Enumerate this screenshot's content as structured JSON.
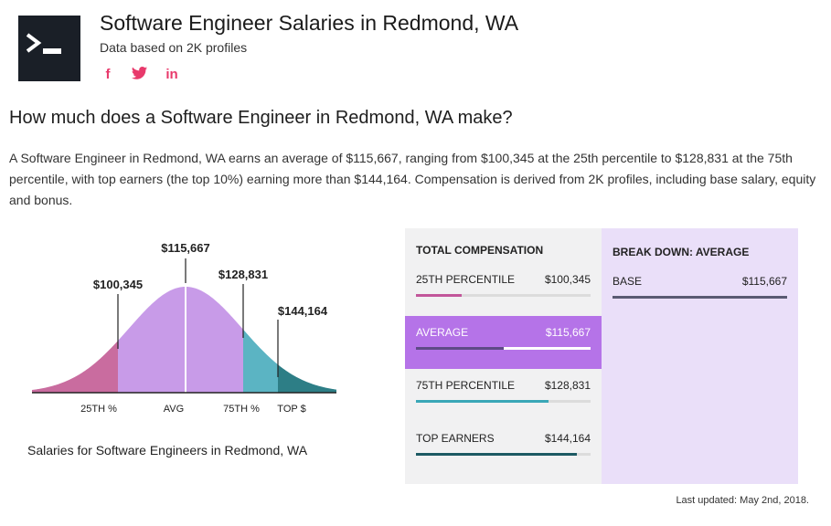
{
  "header": {
    "title": "Software Engineer Salaries in Redmond, WA",
    "subtitle": "Data based on 2K profiles",
    "social": [
      {
        "label": "f",
        "icon": "facebook-icon"
      },
      {
        "label": "twitter",
        "icon": "twitter-icon"
      },
      {
        "label": "in",
        "icon": "linkedin-icon"
      }
    ]
  },
  "question": "How much does a Software Engineer in Redmond, WA make?",
  "paragraph": "A Software Engineer in Redmond, WA earns an average of $115,667, ranging from $100,345 at the 25th percentile to $128,831 at the 75th percentile, with top earners (the top 10%) earning more than $144,164. Compensation is derived from 2K profiles, including base salary, equity and bonus.",
  "chart": {
    "labels": {
      "p25": "$100,345",
      "avg": "$115,667",
      "p75": "$128,831",
      "top": "$144,164"
    },
    "axis": {
      "p25": "25TH %",
      "avg": "AVG",
      "p75": "75TH %",
      "top": "TOP $"
    },
    "caption": "Salaries for Software Engineers in Redmond, WA",
    "colors": {
      "p25": "#c96c9f",
      "avg": "#c89be8",
      "p75": "#5bb4c3",
      "top": "#2d7e86"
    }
  },
  "chart_data": {
    "type": "area",
    "title": "",
    "series": [
      {
        "name": "25TH %",
        "values": [
          100345
        ]
      },
      {
        "name": "AVG",
        "values": [
          115667
        ]
      },
      {
        "name": "75TH %",
        "values": [
          128831
        ]
      },
      {
        "name": "TOP $",
        "values": [
          144164
        ]
      }
    ]
  },
  "compensation": {
    "header": "TOTAL COMPENSATION",
    "rows": [
      {
        "label": "25TH PERCENTILE",
        "value": "$100,345",
        "fill": 0.26,
        "color": "#c2569a",
        "active": false
      },
      {
        "label": "AVERAGE",
        "value": "$115,667",
        "fill": 0.5,
        "color": "#5e4a86",
        "active": true
      },
      {
        "label": "75TH PERCENTILE",
        "value": "$128,831",
        "fill": 0.76,
        "color": "#3aa7b7",
        "active": false
      },
      {
        "label": "TOP EARNERS",
        "value": "$144,164",
        "fill": 0.92,
        "color": "#1d5a63",
        "active": false
      }
    ]
  },
  "breakdown": {
    "header": "BREAK DOWN: AVERAGE",
    "rows": [
      {
        "label": "BASE",
        "value": "$115,667",
        "fill": 1.0,
        "color": "#5a5a72"
      }
    ]
  },
  "footer": {
    "updated": "Last updated: May 2nd, 2018."
  }
}
